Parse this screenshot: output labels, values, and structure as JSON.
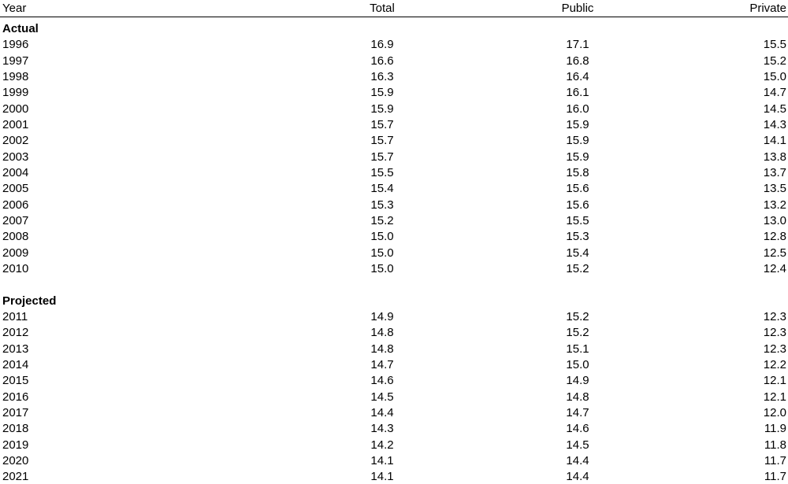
{
  "table": {
    "header": [
      "Year",
      "Total",
      "Public",
      "Private"
    ],
    "sections": [
      {
        "label": "Actual",
        "rows": [
          [
            "1996",
            "16.9",
            "17.1",
            "15.5"
          ],
          [
            "1997",
            "16.6",
            "16.8",
            "15.2"
          ],
          [
            "1998",
            "16.3",
            "16.4",
            "15.0"
          ],
          [
            "1999",
            "15.9",
            "16.1",
            "14.7"
          ],
          [
            "2000",
            "15.9",
            "16.0",
            "14.5"
          ],
          [
            "2001",
            "15.7",
            "15.9",
            "14.3"
          ],
          [
            "2002",
            "15.7",
            "15.9",
            "14.1"
          ],
          [
            "2003",
            "15.7",
            "15.9",
            "13.8"
          ],
          [
            "2004",
            "15.5",
            "15.8",
            "13.7"
          ],
          [
            "2005",
            "15.4",
            "15.6",
            "13.5"
          ],
          [
            "2006",
            "15.3",
            "15.6",
            "13.2"
          ],
          [
            "2007",
            "15.2",
            "15.5",
            "13.0"
          ],
          [
            "2008",
            "15.0",
            "15.3",
            "12.8"
          ],
          [
            "2009",
            "15.0",
            "15.4",
            "12.5"
          ],
          [
            "2010",
            "15.0",
            "15.2",
            "12.4"
          ]
        ]
      },
      {
        "label": "Projected",
        "rows": [
          [
            "2011",
            "14.9",
            "15.2",
            "12.3"
          ],
          [
            "2012",
            "14.8",
            "15.2",
            "12.3"
          ],
          [
            "2013",
            "14.8",
            "15.1",
            "12.3"
          ],
          [
            "2014",
            "14.7",
            "15.0",
            "12.2"
          ],
          [
            "2015",
            "14.6",
            "14.9",
            "12.1"
          ],
          [
            "2016",
            "14.5",
            "14.8",
            "12.1"
          ],
          [
            "2017",
            "14.4",
            "14.7",
            "12.0"
          ],
          [
            "2018",
            "14.3",
            "14.6",
            "11.9"
          ],
          [
            "2019",
            "14.2",
            "14.5",
            "11.8"
          ],
          [
            "2020",
            "14.1",
            "14.4",
            "11.7"
          ],
          [
            "2021",
            "14.1",
            "14.4",
            "11.7"
          ]
        ]
      }
    ]
  }
}
